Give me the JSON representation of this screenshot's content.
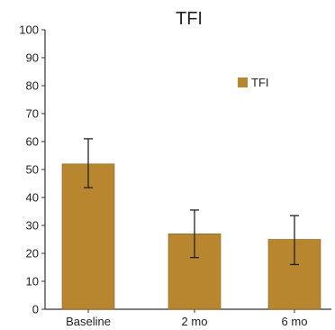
{
  "chart_data": {
    "type": "bar",
    "title": "TFI",
    "xlabel": "",
    "ylabel": "",
    "categories": [
      "Baseline",
      "2 mo",
      "6 mo"
    ],
    "series": [
      {
        "name": "TFI",
        "values": [
          52,
          27,
          25
        ],
        "error_low": [
          43.5,
          18.5,
          16
        ],
        "error_high": [
          61,
          35.5,
          33.5
        ]
      }
    ],
    "ylim": [
      0,
      100
    ],
    "yticks": [
      0,
      10,
      20,
      30,
      40,
      50,
      60,
      70,
      80,
      90,
      100
    ],
    "grid": false,
    "legend": "top-right",
    "colors": {
      "bar": "#b8862f",
      "bar_edge": "#8a6420",
      "axis": "#333333",
      "error": "#222222"
    }
  }
}
